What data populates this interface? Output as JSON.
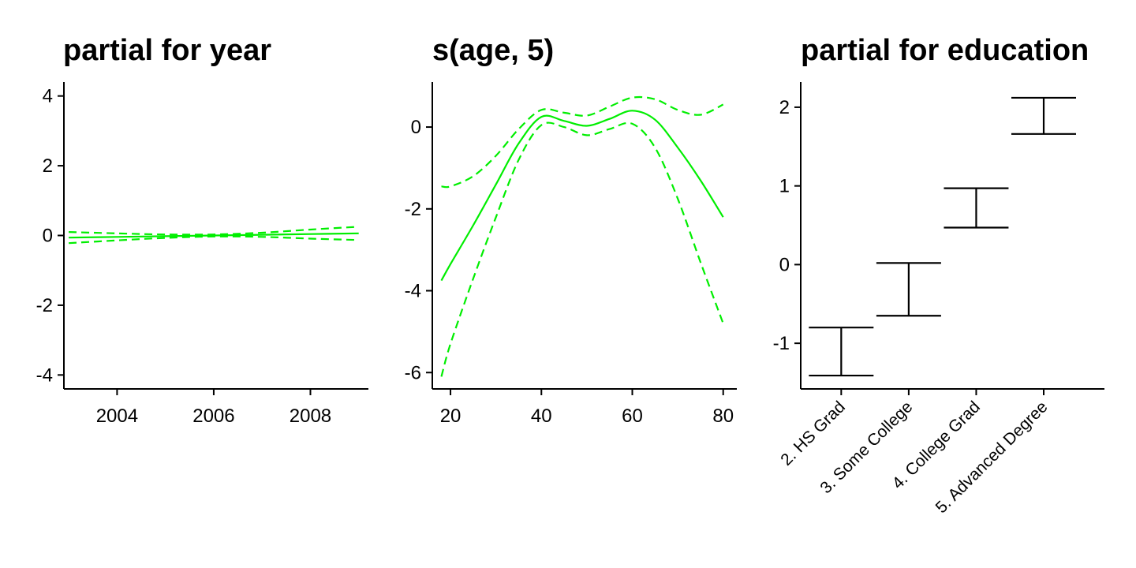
{
  "colors": {
    "line": "#00ee00",
    "axis": "#000000",
    "errorbar": "#000000"
  },
  "chart_data": [
    {
      "type": "line",
      "title": "partial for year",
      "xlabel": "",
      "ylabel": "",
      "xlim": [
        2002.9,
        2009.2
      ],
      "ylim": [
        -4.4,
        4.4
      ],
      "xticks": [
        2004,
        2006,
        2008
      ],
      "yticks": [
        -4,
        -2,
        0,
        2,
        4
      ],
      "x": [
        2003,
        2004,
        2005,
        2006,
        2007,
        2008,
        2009
      ],
      "series": [
        {
          "name": "upper",
          "style": "dashed",
          "values": [
            0.1,
            0.06,
            0.03,
            0.03,
            0.08,
            0.17,
            0.25
          ]
        },
        {
          "name": "fit",
          "style": "solid",
          "values": [
            -0.06,
            -0.04,
            -0.02,
            0.0,
            0.02,
            0.04,
            0.06
          ]
        },
        {
          "name": "lower",
          "style": "dashed",
          "values": [
            -0.22,
            -0.14,
            -0.07,
            -0.03,
            -0.04,
            -0.09,
            -0.13
          ]
        }
      ]
    },
    {
      "type": "line",
      "title": "s(age, 5)",
      "xlabel": "",
      "ylabel": "",
      "xlim": [
        16,
        83
      ],
      "ylim": [
        -6.4,
        1.1
      ],
      "xticks": [
        20,
        40,
        60,
        80
      ],
      "yticks": [
        -6,
        -4,
        -2,
        0
      ],
      "x": [
        18,
        20,
        25,
        30,
        35,
        40,
        45,
        50,
        55,
        60,
        65,
        70,
        75,
        80
      ],
      "series": [
        {
          "name": "upper",
          "style": "dashed",
          "values": [
            -1.45,
            -1.45,
            -1.2,
            -0.7,
            -0.05,
            0.42,
            0.35,
            0.28,
            0.5,
            0.72,
            0.68,
            0.42,
            0.3,
            0.55
          ]
        },
        {
          "name": "fit",
          "style": "solid",
          "values": [
            -3.75,
            -3.35,
            -2.4,
            -1.4,
            -0.4,
            0.25,
            0.15,
            0.03,
            0.2,
            0.4,
            0.18,
            -0.5,
            -1.3,
            -2.2
          ]
        },
        {
          "name": "lower",
          "style": "dashed",
          "values": [
            -6.1,
            -5.3,
            -3.7,
            -2.2,
            -0.8,
            0.05,
            0.0,
            -0.2,
            -0.05,
            0.08,
            -0.5,
            -1.75,
            -3.3,
            -4.8
          ]
        }
      ]
    },
    {
      "type": "errorbar",
      "title": "partial for education",
      "xlabel": "",
      "ylabel": "",
      "ylim": [
        -1.58,
        2.32
      ],
      "yticks": [
        -1,
        0,
        1,
        2
      ],
      "categories": [
        "2. HS Grad",
        "3. Some College",
        "4. College Grad",
        "5. Advanced Degree"
      ],
      "upper": [
        -0.8,
        0.02,
        0.97,
        2.12
      ],
      "lower": [
        -1.41,
        -0.65,
        0.47,
        1.66
      ]
    }
  ]
}
